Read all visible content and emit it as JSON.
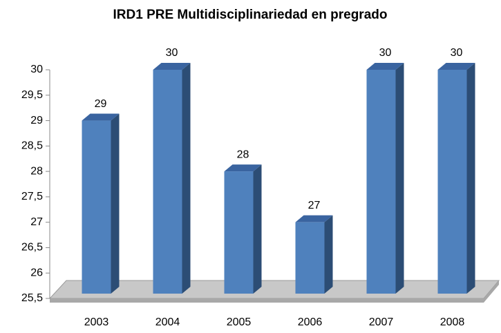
{
  "chart_data": {
    "type": "bar3d",
    "title": "IRD1 PRE Multidisciplinariedad en pregrado",
    "categories": [
      "2003",
      "2004",
      "2005",
      "2006",
      "2007",
      "2008"
    ],
    "values": [
      29,
      30,
      28,
      27,
      30,
      30
    ],
    "color": "#4f81bd",
    "ylim": [
      25.5,
      30
    ],
    "yticks": [
      {
        "value": 25.5,
        "label": "25,5"
      },
      26,
      {
        "value": 26.5,
        "label": "26,5"
      },
      27,
      {
        "value": 27.5,
        "label": "27,5"
      },
      28,
      {
        "value": 28.5,
        "label": "28,5"
      },
      29,
      {
        "value": 29.5,
        "label": "29,5"
      },
      30
    ],
    "grid": false
  }
}
